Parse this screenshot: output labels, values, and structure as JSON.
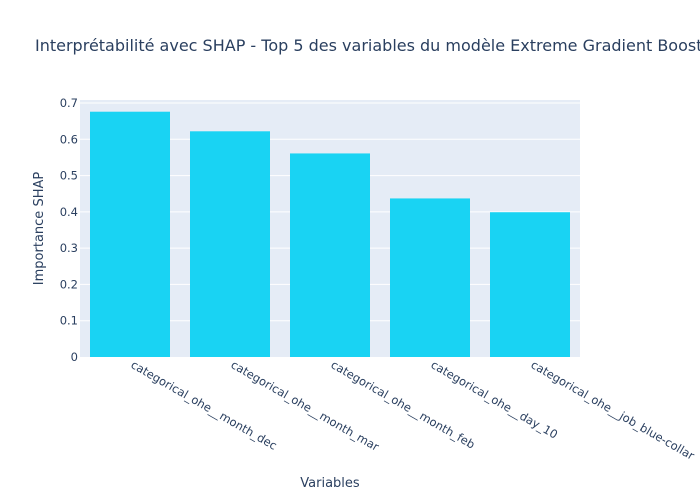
{
  "chart_data": {
    "type": "bar",
    "title": "Interprétabilité avec SHAP - Top 5 des variables du modèle Extreme Gradient Boost",
    "xlabel": "Variables",
    "ylabel": "Importance SHAP",
    "categories": [
      "categorical_ohe__month_dec",
      "categorical_ohe__month_mar",
      "categorical_ohe__month_feb",
      "categorical_ohe__day_10",
      "categorical_ohe__job_blue-collar"
    ],
    "values": [
      0.676,
      0.622,
      0.561,
      0.437,
      0.399
    ],
    "ylim": [
      0,
      0.7
    ],
    "yticks": [
      0,
      0.1,
      0.2,
      0.3,
      0.4,
      0.5,
      0.6,
      0.7
    ],
    "ytick_labels": [
      "0",
      "0.1",
      "0.2",
      "0.3",
      "0.4",
      "0.5",
      "0.6",
      "0.7"
    ],
    "grid": true,
    "legend": "none",
    "colors": {
      "bar": "#19d3f3",
      "plot_background": "#e5ecf6",
      "gridline": "#ffffff",
      "text": "#2a3f5f"
    }
  }
}
